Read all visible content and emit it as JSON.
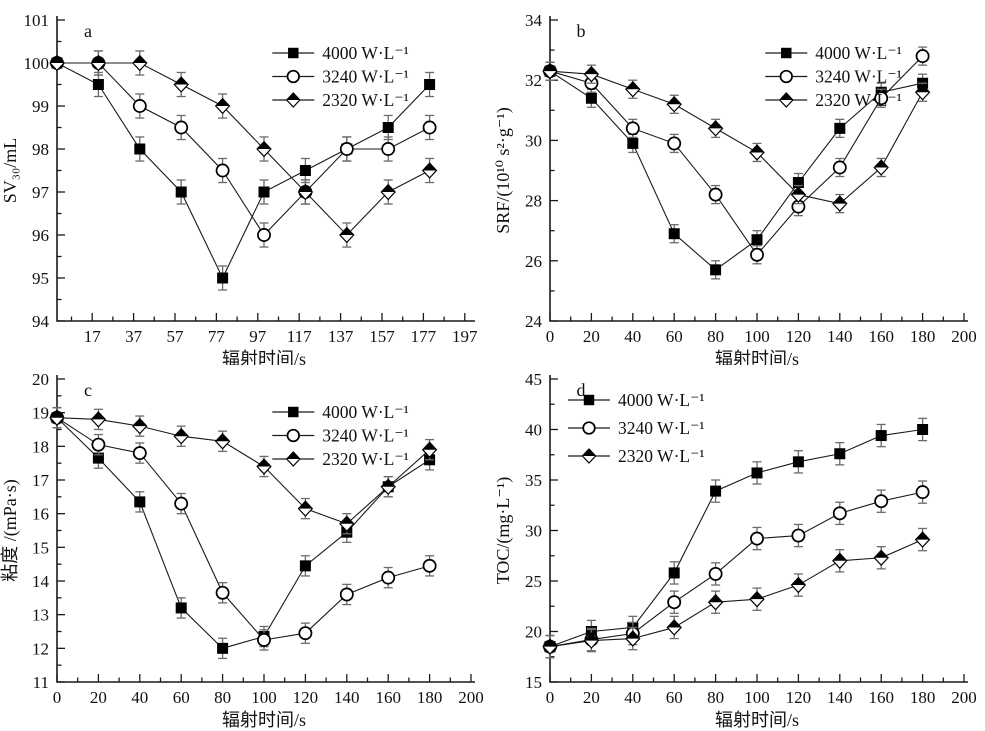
{
  "figure": {
    "background": "#ffffff",
    "xlabel_shared": "辐射时间/s"
  },
  "colors": {
    "line": "#1a1a1a",
    "axis": "#1a1a1a",
    "error_bar": "#6b6b6b",
    "marker_fill": "#000000",
    "marker_open_fill": "#ffffff",
    "text": "#111111"
  },
  "chart_data": [
    {
      "type": "line",
      "panel": "a",
      "corner_label": "a",
      "title": "",
      "xlabel": "辐射时间/s",
      "ylabel": "SV₃₀/mL",
      "xlim": [
        0,
        200
      ],
      "ylim": [
        94,
        101
      ],
      "xticks": [
        17,
        37,
        57,
        77,
        97,
        117,
        137,
        157,
        177,
        197
      ],
      "x_minor_start": 7,
      "x_minor_step": 20,
      "yticks": [
        94,
        95,
        96,
        97,
        98,
        99,
        100,
        101
      ],
      "y_minor_step": 0.5,
      "grid": false,
      "legend_position": "top-right",
      "error": 0.28,
      "error_bar_at_x0": false,
      "x": [
        0,
        20,
        40,
        60,
        80,
        100,
        120,
        140,
        160,
        180
      ],
      "series": [
        {
          "name": "4000 W·L⁻¹",
          "marker": "square",
          "values": [
            100,
            99.5,
            98,
            97,
            95,
            97,
            97.5,
            98,
            98.5,
            99.5
          ]
        },
        {
          "name": "3240 W·L⁻¹",
          "marker": "circle",
          "values": [
            100,
            100,
            99,
            98.5,
            97.5,
            96,
            97,
            98,
            98,
            98.5
          ]
        },
        {
          "name": "2320 W·L⁻¹",
          "marker": "diamond",
          "values": [
            100,
            100,
            100,
            99.5,
            99,
            98,
            97,
            96,
            97,
            97.5
          ]
        }
      ]
    },
    {
      "type": "line",
      "panel": "b",
      "corner_label": "b",
      "title": "",
      "xlabel": "辐射时间/s",
      "ylabel": "SRF/(10¹⁰ s²·g⁻¹)",
      "xlim": [
        0,
        200
      ],
      "ylim": [
        24,
        34
      ],
      "xticks": [
        0,
        20,
        40,
        60,
        80,
        100,
        120,
        140,
        160,
        180,
        200
      ],
      "x_minor_start": 10,
      "x_minor_step": 20,
      "yticks": [
        24,
        26,
        28,
        30,
        32,
        34
      ],
      "y_minor_step": 1,
      "grid": false,
      "legend_position": "top-right",
      "error": 0.3,
      "error_bar_at_x0": true,
      "x": [
        0,
        20,
        40,
        60,
        80,
        100,
        120,
        140,
        160,
        180
      ],
      "series": [
        {
          "name": "4000 W·L⁻¹",
          "marker": "square",
          "values": [
            32.3,
            31.4,
            29.9,
            26.9,
            25.7,
            26.7,
            28.6,
            30.4,
            31.6,
            31.9
          ]
        },
        {
          "name": "3240 W·L⁻¹",
          "marker": "circle",
          "values": [
            32.3,
            31.9,
            30.4,
            29.9,
            28.2,
            26.2,
            27.8,
            29.1,
            31.4,
            32.8
          ]
        },
        {
          "name": "2320 W·L⁻¹",
          "marker": "diamond",
          "values": [
            32.3,
            32.2,
            31.7,
            31.2,
            30.4,
            29.6,
            28.2,
            27.9,
            29.1,
            31.6
          ]
        }
      ]
    },
    {
      "type": "line",
      "panel": "c",
      "corner_label": "c",
      "title": "",
      "xlabel": "辐射时间/s",
      "ylabel": "粘度 /(mPa·s)",
      "xlim": [
        0,
        200
      ],
      "ylim": [
        11,
        20
      ],
      "xticks": [
        0,
        20,
        40,
        60,
        80,
        100,
        120,
        140,
        160,
        180,
        200
      ],
      "x_minor_start": 10,
      "x_minor_step": 20,
      "yticks": [
        11,
        12,
        13,
        14,
        15,
        16,
        17,
        18,
        19,
        20
      ],
      "y_minor_step": 0.5,
      "grid": false,
      "legend_position": "top-right",
      "error": 0.3,
      "error_bar_at_x0": true,
      "x": [
        0,
        20,
        40,
        60,
        80,
        100,
        120,
        140,
        160,
        180
      ],
      "series": [
        {
          "name": "4000 W·L⁻¹",
          "marker": "square",
          "values": [
            18.85,
            17.65,
            16.35,
            13.2,
            12.0,
            12.35,
            14.45,
            15.45,
            16.8,
            17.6
          ]
        },
        {
          "name": "3240 W·L⁻¹",
          "marker": "circle",
          "values": [
            18.85,
            18.05,
            17.8,
            16.3,
            13.65,
            12.25,
            12.45,
            13.6,
            14.1,
            14.45
          ]
        },
        {
          "name": "2320 W·L⁻¹",
          "marker": "diamond",
          "values": [
            18.85,
            18.8,
            18.6,
            18.3,
            18.15,
            17.4,
            16.15,
            15.7,
            16.8,
            17.9
          ]
        }
      ]
    },
    {
      "type": "line",
      "panel": "d",
      "corner_label": "d",
      "title": "",
      "xlabel": "辐射时间/s",
      "ylabel": "TOC/(mg·L⁻¹)",
      "xlim": [
        0,
        200
      ],
      "ylim": [
        15,
        45
      ],
      "xticks": [
        0,
        20,
        40,
        60,
        80,
        100,
        120,
        140,
        160,
        180,
        200
      ],
      "x_minor_start": 10,
      "x_minor_step": 20,
      "yticks": [
        15,
        20,
        25,
        30,
        35,
        40,
        45
      ],
      "y_minor_step": 2.5,
      "grid": false,
      "legend_position": "top-left",
      "error": 1.1,
      "error_bar_at_x0": true,
      "x": [
        0,
        20,
        40,
        60,
        80,
        100,
        120,
        140,
        160,
        180
      ],
      "series": [
        {
          "name": "4000 W·L⁻¹",
          "marker": "square",
          "values": [
            18.5,
            20.0,
            20.4,
            25.8,
            33.9,
            35.7,
            36.8,
            37.6,
            39.4,
            40.0
          ]
        },
        {
          "name": "3240 W·L⁻¹",
          "marker": "circle",
          "values": [
            18.5,
            19.2,
            19.8,
            22.9,
            25.7,
            29.2,
            29.5,
            31.7,
            32.9,
            33.8
          ]
        },
        {
          "name": "2320 W·L⁻¹",
          "marker": "diamond",
          "values": [
            18.5,
            19.1,
            19.3,
            20.4,
            22.9,
            23.2,
            24.6,
            27.0,
            27.3,
            29.1
          ]
        }
      ]
    }
  ]
}
